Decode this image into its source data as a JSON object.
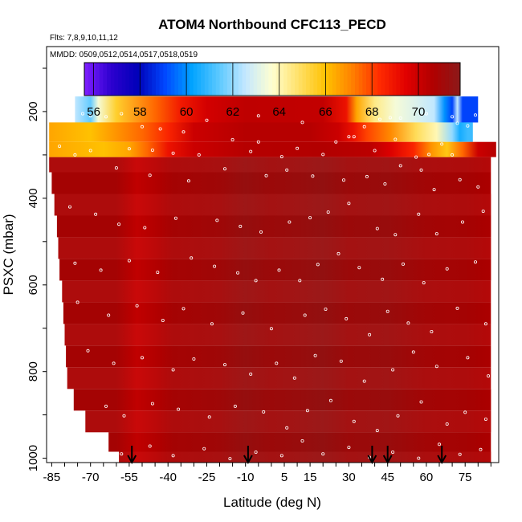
{
  "chart_data": {
    "type": "heatmap",
    "title": "ATOM4 Northbound CFC113_PECD",
    "notes": [
      "Flts: 7,8,9,10,11,12",
      "MMDD: 0509,0512,0514,0517,0518,0519"
    ],
    "xlabel": "Latitude (deg N)",
    "ylabel": "PSXC (mbar)",
    "xlim": [
      -87,
      88
    ],
    "ylim": [
      1010,
      50
    ],
    "x_ticks": [
      -85,
      -70,
      -55,
      -40,
      -25,
      -10,
      5,
      15,
      30,
      45,
      60,
      75
    ],
    "y_ticks": [
      200,
      400,
      600,
      800,
      1000
    ],
    "colorbar": {
      "min": 55.6,
      "max": 71.8,
      "ticks": [
        56,
        58,
        60,
        62,
        64,
        66,
        68,
        70
      ],
      "colors": [
        "#7f1fff",
        "#2d00cf",
        "#0000b8",
        "#0047ff",
        "#00a3ff",
        "#5ac8ff",
        "#c4e8ff",
        "#ffffd0",
        "#ffe066",
        "#ffc100",
        "#ff7f00",
        "#ff2a00",
        "#e00000",
        "#b00000",
        "#8b1a1a"
      ]
    },
    "top_layers": [
      {
        "p_top": 165,
        "p_bottom": 225,
        "lat_start": -76,
        "lat_end": 80,
        "start_value": 62,
        "stops": [
          [
            -76,
            62.5
          ],
          [
            -70,
            61.5
          ],
          [
            -67,
            63.5
          ],
          [
            -60,
            65.5
          ],
          [
            -45,
            67.5
          ],
          [
            -35,
            68.8
          ],
          [
            -25,
            69.8
          ],
          [
            -10,
            70.3
          ],
          [
            20,
            70.2
          ],
          [
            29,
            69
          ],
          [
            33,
            66.5
          ],
          [
            40,
            64.5
          ],
          [
            48,
            63.5
          ],
          [
            56,
            63
          ],
          [
            63,
            62.5
          ],
          [
            67,
            60
          ],
          [
            70,
            59
          ],
          [
            72,
            62.5
          ],
          [
            74,
            59
          ]
        ]
      },
      {
        "p_top": 225,
        "p_bottom": 270,
        "lat_start": -86,
        "lat_end": 78,
        "start_value": 66,
        "stops": [
          [
            -86,
            66.5
          ],
          [
            -70,
            66
          ],
          [
            -50,
            67.5
          ],
          [
            -40,
            68.5
          ],
          [
            -30,
            70
          ],
          [
            -10,
            70.5
          ],
          [
            15,
            70.5
          ],
          [
            26,
            70
          ],
          [
            32,
            69
          ],
          [
            37,
            68
          ],
          [
            46,
            67
          ],
          [
            56,
            65
          ],
          [
            64,
            64
          ],
          [
            70,
            62
          ],
          [
            73,
            60.5
          ],
          [
            76,
            61
          ]
        ]
      },
      {
        "p_top": 270,
        "p_bottom": 305,
        "lat_start": -86,
        "lat_end": 87,
        "start_value": 66,
        "stops": [
          [
            -86,
            66.5
          ],
          [
            -65,
            66
          ],
          [
            -55,
            66.5
          ],
          [
            -48,
            67.5
          ],
          [
            -40,
            69
          ],
          [
            -30,
            70
          ],
          [
            -10,
            70.5
          ],
          [
            20,
            70.6
          ],
          [
            38,
            70.4
          ],
          [
            46,
            69.6
          ],
          [
            55,
            68.5
          ],
          [
            62,
            66.8
          ],
          [
            68,
            65.8
          ],
          [
            74,
            67.5
          ],
          [
            80,
            70
          ],
          [
            87,
            70.5
          ]
        ]
      }
    ],
    "profile_rows": [
      {
        "p_top": 305,
        "p_bottom": 340,
        "lat_start": -86,
        "value": 70.5
      },
      {
        "p_top": 340,
        "p_bottom": 390,
        "lat_start": -85,
        "value": 70.6
      },
      {
        "p_top": 390,
        "p_bottom": 440,
        "lat_start": -84,
        "value": 70.7
      },
      {
        "p_top": 440,
        "p_bottom": 490,
        "lat_start": -83,
        "value": 70.8
      },
      {
        "p_top": 490,
        "p_bottom": 540,
        "lat_start": -82.5,
        "value": 70.7
      },
      {
        "p_top": 540,
        "p_bottom": 590,
        "lat_start": -82,
        "value": 70.8
      },
      {
        "p_top": 590,
        "p_bottom": 640,
        "lat_start": -81,
        "value": 70.7
      },
      {
        "p_top": 640,
        "p_bottom": 690,
        "lat_start": -80.5,
        "value": 70.6
      },
      {
        "p_top": 690,
        "p_bottom": 740,
        "lat_start": -80,
        "value": 70.6
      },
      {
        "p_top": 740,
        "p_bottom": 790,
        "lat_start": -79.5,
        "value": 70.7
      },
      {
        "p_top": 790,
        "p_bottom": 840,
        "lat_start": -79,
        "value": 70.7
      },
      {
        "p_top": 840,
        "p_bottom": 890,
        "lat_start": -76.5,
        "value": 70.7
      },
      {
        "p_top": 890,
        "p_bottom": 940,
        "lat_start": -72,
        "value": 70.8
      },
      {
        "p_top": 940,
        "p_bottom": 985,
        "lat_start": -63,
        "value": 70.7
      },
      {
        "p_top": 985,
        "p_bottom": 1010,
        "lat_start": -59,
        "value": 70.8
      }
    ],
    "profile_lat_end": 85,
    "profile_stops": [
      [
        -86,
        70.8
      ],
      [
        -60,
        70.8
      ],
      [
        -52,
        70.1
      ],
      [
        -45,
        70.4
      ],
      [
        -38,
        70.8
      ],
      [
        -20,
        71.0
      ],
      [
        -10,
        71.3
      ],
      [
        0,
        71.1
      ],
      [
        10,
        71.2
      ],
      [
        20,
        71.4
      ],
      [
        30,
        71.1
      ],
      [
        45,
        71.2
      ],
      [
        60,
        70.9
      ],
      [
        75,
        70.8
      ],
      [
        85,
        70.6
      ]
    ],
    "markers_lat": [
      -54,
      -9,
      39,
      45,
      66
    ],
    "sample_points": [
      [
        -73,
        205
      ],
      [
        -70,
        210
      ],
      [
        -64,
        212
      ],
      [
        -58,
        205
      ],
      [
        -50,
        235
      ],
      [
        -43,
        240
      ],
      [
        -34,
        247
      ],
      [
        -25,
        220
      ],
      [
        -5,
        210
      ],
      [
        12,
        225
      ],
      [
        30,
        258
      ],
      [
        36,
        235
      ],
      [
        42,
        218
      ],
      [
        46,
        214
      ],
      [
        50,
        215
      ],
      [
        60,
        205
      ],
      [
        70,
        212
      ],
      [
        72,
        227
      ],
      [
        76,
        233
      ],
      [
        79,
        208
      ],
      [
        -82,
        280
      ],
      [
        -76,
        300
      ],
      [
        -70,
        290
      ],
      [
        -55,
        286
      ],
      [
        -46,
        289
      ],
      [
        -38,
        296
      ],
      [
        -28,
        300
      ],
      [
        -15,
        265
      ],
      [
        -8,
        292
      ],
      [
        -5,
        270
      ],
      [
        4,
        304
      ],
      [
        10,
        285
      ],
      [
        20,
        299
      ],
      [
        25,
        270
      ],
      [
        32,
        258
      ],
      [
        40,
        290
      ],
      [
        48,
        264
      ],
      [
        56,
        305
      ],
      [
        61,
        299
      ],
      [
        66,
        275
      ],
      [
        70,
        300
      ],
      [
        -60,
        330
      ],
      [
        -47,
        347
      ],
      [
        -32,
        360
      ],
      [
        -18,
        332
      ],
      [
        -2,
        348
      ],
      [
        6,
        335
      ],
      [
        16,
        349
      ],
      [
        28,
        358
      ],
      [
        37,
        350
      ],
      [
        44,
        367
      ],
      [
        50,
        325
      ],
      [
        58,
        335
      ],
      [
        63,
        380
      ],
      [
        73,
        357
      ],
      [
        80,
        374
      ],
      [
        -78,
        420
      ],
      [
        -68,
        437
      ],
      [
        -59,
        460
      ],
      [
        -49,
        468
      ],
      [
        -37,
        446
      ],
      [
        -21,
        451
      ],
      [
        -12,
        465
      ],
      [
        -4,
        478
      ],
      [
        7,
        455
      ],
      [
        15,
        445
      ],
      [
        22,
        432
      ],
      [
        30,
        412
      ],
      [
        41,
        470
      ],
      [
        48,
        484
      ],
      [
        57,
        437
      ],
      [
        64,
        482
      ],
      [
        74,
        455
      ],
      [
        82,
        430
      ],
      [
        -76,
        550
      ],
      [
        -66,
        566
      ],
      [
        -55,
        544
      ],
      [
        -44,
        571
      ],
      [
        -31,
        538
      ],
      [
        -22,
        557
      ],
      [
        -13,
        572
      ],
      [
        -6,
        590
      ],
      [
        3,
        566
      ],
      [
        11,
        590
      ],
      [
        18,
        553
      ],
      [
        26,
        528
      ],
      [
        34,
        560
      ],
      [
        43,
        587
      ],
      [
        51,
        552
      ],
      [
        59,
        595
      ],
      [
        68,
        563
      ],
      [
        79,
        547
      ],
      [
        -75,
        640
      ],
      [
        -63,
        670
      ],
      [
        -52,
        648
      ],
      [
        -42,
        682
      ],
      [
        -34,
        655
      ],
      [
        -23,
        690
      ],
      [
        -11,
        665
      ],
      [
        0,
        701
      ],
      [
        13,
        670
      ],
      [
        21,
        656
      ],
      [
        29,
        678
      ],
      [
        38,
        715
      ],
      [
        45,
        661
      ],
      [
        53,
        688
      ],
      [
        62,
        708
      ],
      [
        72,
        654
      ],
      [
        83,
        690
      ],
      [
        -71,
        752
      ],
      [
        -61,
        781
      ],
      [
        -50,
        768
      ],
      [
        -38,
        796
      ],
      [
        -30,
        771
      ],
      [
        -18,
        784
      ],
      [
        -8,
        806
      ],
      [
        2,
        781
      ],
      [
        9,
        815
      ],
      [
        17,
        763
      ],
      [
        27,
        776
      ],
      [
        36,
        822
      ],
      [
        47,
        796
      ],
      [
        55,
        755
      ],
      [
        64,
        788
      ],
      [
        76,
        768
      ],
      [
        84,
        810
      ],
      [
        -64,
        880
      ],
      [
        -57,
        902
      ],
      [
        -46,
        874
      ],
      [
        -36,
        887
      ],
      [
        -24,
        905
      ],
      [
        -14,
        880
      ],
      [
        -3,
        893
      ],
      [
        6,
        930
      ],
      [
        14,
        890
      ],
      [
        23,
        867
      ],
      [
        32,
        915
      ],
      [
        41,
        936
      ],
      [
        49,
        902
      ],
      [
        58,
        870
      ],
      [
        68,
        921
      ],
      [
        75,
        894
      ],
      [
        83,
        910
      ],
      [
        -58,
        990
      ],
      [
        -47,
        972
      ],
      [
        -38,
        994
      ],
      [
        -26,
        978
      ],
      [
        -16,
        1001
      ],
      [
        -6,
        986
      ],
      [
        4,
        994
      ],
      [
        12,
        960
      ],
      [
        20,
        990
      ],
      [
        30,
        975
      ],
      [
        38,
        998
      ],
      [
        47,
        986
      ],
      [
        57,
        1000
      ],
      [
        65,
        968
      ],
      [
        73,
        991
      ],
      [
        81,
        980
      ]
    ]
  }
}
